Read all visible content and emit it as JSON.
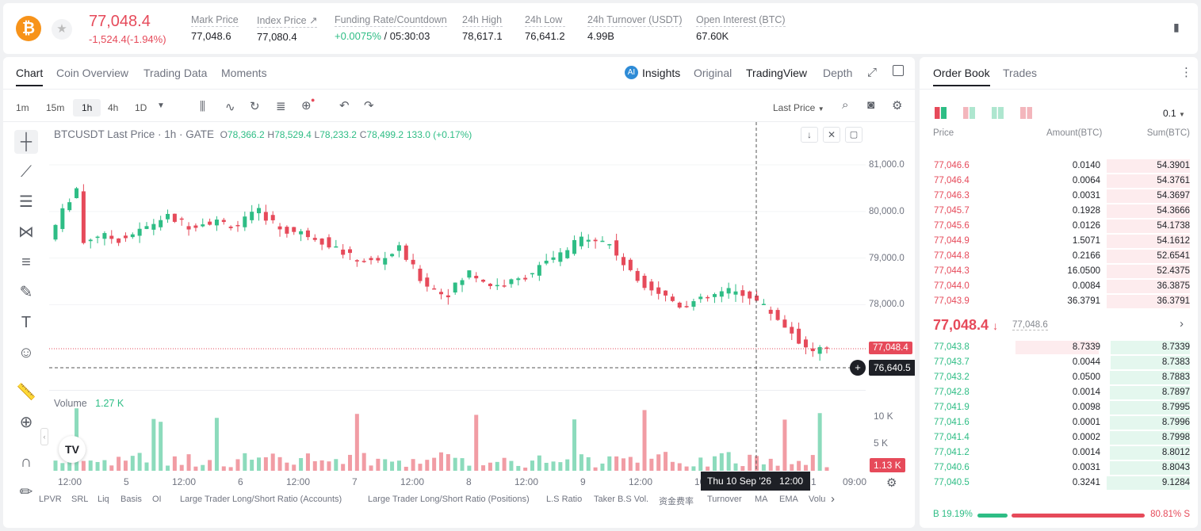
{
  "header": {
    "coin_icon": "bitcoin-icon",
    "last_price": "77,048.4",
    "change": "-1,524.4(-1.94%)",
    "stats": [
      {
        "label": "Mark Price",
        "value": "77,048.6"
      },
      {
        "label": "Index Price ↗",
        "value": "77,080.4"
      },
      {
        "label": "Funding Rate/Countdown",
        "value_a": "+0.0075%",
        "value_b": " / 05:30:03"
      },
      {
        "label": "24h High",
        "value": "78,617.1"
      },
      {
        "label": "24h Low",
        "value": "76,641.2"
      },
      {
        "label": "24h Turnover (USDT)",
        "value": "4.99B"
      },
      {
        "label": "Open Interest (BTC)",
        "value": "67.60K"
      }
    ]
  },
  "chart_tabs": [
    "Chart",
    "Coin Overview",
    "Trading Data",
    "Moments"
  ],
  "chart_views": {
    "insights": "Insights",
    "original": "Original",
    "tradingview": "TradingView",
    "depth": "Depth"
  },
  "intervals": [
    "1m",
    "15m",
    "1h",
    "4h",
    "1D"
  ],
  "price_type": "Last Price",
  "legend": {
    "symbol": "BTCUSDT Last Price · 1h · GATE",
    "o": "78,366.2",
    "h": "78,529.4",
    "l": "78,233.2",
    "c": "78,499.2",
    "chg": "133.0 (+0.17%)"
  },
  "volume": {
    "label": "Volume",
    "value": "1.27 K"
  },
  "price_axis": [
    "81,000.0",
    "80,000.0",
    "79,000.0",
    "78,000.0"
  ],
  "last_tag": "77,048.4",
  "cross_tag": "76,640.5",
  "vol_axis": [
    "10 K",
    "5 K"
  ],
  "vol_tag": "1.13 K",
  "time_axis": [
    "12:00",
    "5",
    "12:00",
    "6",
    "12:00",
    "7",
    "12:00",
    "8",
    "12:00",
    "9",
    "12:00",
    "10",
    "1",
    "09:00"
  ],
  "cross_time": "Thu 10 Sep '26   12:00",
  "indicators": [
    "LPVR",
    "SRL",
    "Liq",
    "Basis",
    "OI",
    "Large Trader Long/Short Ratio (Accounts)",
    "Large Trader Long/Short Ratio (Positions)",
    "L.S Ratio",
    "Taker B.S Vol.",
    "资金费率",
    "Turnover",
    "MA",
    "EMA",
    "Volu"
  ],
  "orderbook": {
    "tabs": [
      "Order Book",
      "Trades"
    ],
    "precision": "0.1",
    "headers": [
      "Price",
      "Amount(BTC)",
      "Sum(BTC)"
    ],
    "asks": [
      [
        "77,046.6",
        "0.0140",
        "54.3901"
      ],
      [
        "77,046.4",
        "0.0064",
        "54.3761"
      ],
      [
        "77,046.3",
        "0.0031",
        "54.3697"
      ],
      [
        "77,045.7",
        "0.1928",
        "54.3666"
      ],
      [
        "77,045.6",
        "0.0126",
        "54.1738"
      ],
      [
        "77,044.9",
        "1.5071",
        "54.1612"
      ],
      [
        "77,044.8",
        "0.2166",
        "52.6541"
      ],
      [
        "77,044.3",
        "16.0500",
        "52.4375"
      ],
      [
        "77,044.0",
        "0.0084",
        "36.3875"
      ],
      [
        "77,043.9",
        "36.3791",
        "36.3791"
      ]
    ],
    "mid": {
      "price": "77,048.4",
      "mark": "77,048.6"
    },
    "bids": [
      [
        "77,043.8",
        "8.7339",
        "8.7339"
      ],
      [
        "77,043.7",
        "0.0044",
        "8.7383"
      ],
      [
        "77,043.2",
        "0.0500",
        "8.7883"
      ],
      [
        "77,042.8",
        "0.0014",
        "8.7897"
      ],
      [
        "77,041.9",
        "0.0098",
        "8.7995"
      ],
      [
        "77,041.6",
        "0.0001",
        "8.7996"
      ],
      [
        "77,041.4",
        "0.0002",
        "8.7998"
      ],
      [
        "77,041.2",
        "0.0014",
        "8.8012"
      ],
      [
        "77,040.6",
        "0.0031",
        "8.8043"
      ],
      [
        "77,040.5",
        "0.3241",
        "9.1284"
      ]
    ],
    "buy_ratio": "B 19.19%",
    "sell_ratio": "80.81% S",
    "buy_fraction": 0.1919
  },
  "colors": {
    "up": "#2ebd85",
    "down": "#e64a5a"
  }
}
